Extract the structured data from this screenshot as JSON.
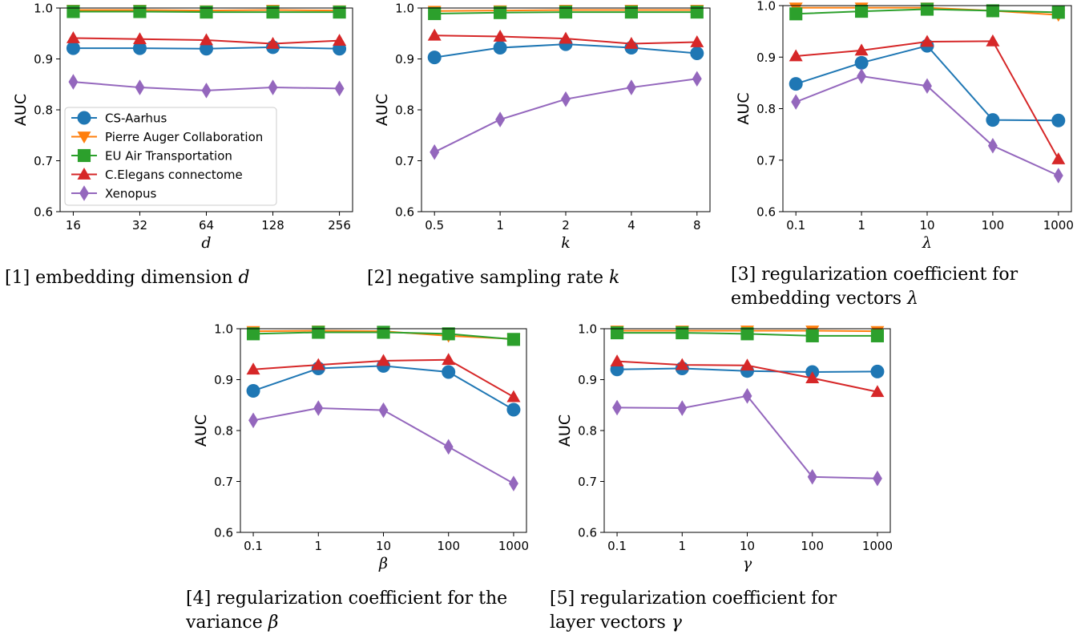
{
  "colors": {
    "CS-Aarhus": "#1f77b4",
    "Pierre Auger Collaboration": "#ff7f0e",
    "EU Air Transportation": "#2ca02c",
    "C.Elegans connectome": "#d62728",
    "Xenopus": "#9467bd"
  },
  "markers": {
    "CS-Aarhus": "circle",
    "Pierre Auger Collaboration": "triangle-down",
    "EU Air Transportation": "square",
    "C.Elegans connectome": "triangle-up",
    "Xenopus": "thin-diamond"
  },
  "captions": [
    {
      "text": "[1] embedding dimension ",
      "var": "d"
    },
    {
      "text": "[2] negative sampling rate ",
      "var": "k"
    },
    {
      "text": "[3] regularization coefficient for embedding vectors ",
      "var": "λ"
    },
    {
      "text": "[4] regularization coefficient for the variance ",
      "var": "β"
    },
    {
      "text": "[5] regularization coefficient for layer vectors ",
      "var": "γ"
    }
  ],
  "chart_data": [
    {
      "type": "line",
      "xlabel": "d",
      "ylabel": "AUC",
      "categories": [
        "16",
        "32",
        "64",
        "128",
        "256"
      ],
      "ylim": [
        0.6,
        1.0
      ],
      "yticks": [
        "0.6",
        "0.7",
        "0.8",
        "0.9",
        "1.0"
      ],
      "legend": "center-left",
      "series": [
        {
          "name": "CS-Aarhus",
          "values": [
            0.921,
            0.921,
            0.92,
            0.923,
            0.92
          ]
        },
        {
          "name": "Pierre Auger Collaboration",
          "values": [
            0.996,
            0.996,
            0.995,
            0.996,
            0.995
          ]
        },
        {
          "name": "EU Air Transportation",
          "values": [
            0.993,
            0.993,
            0.992,
            0.992,
            0.992
          ]
        },
        {
          "name": "C.Elegans connectome",
          "values": [
            0.941,
            0.939,
            0.937,
            0.93,
            0.936
          ]
        },
        {
          "name": "Xenopus",
          "values": [
            0.855,
            0.844,
            0.838,
            0.844,
            0.842
          ]
        }
      ]
    },
    {
      "type": "line",
      "xlabel": "k",
      "ylabel": "AUC",
      "categories": [
        "0.5",
        "1",
        "2",
        "4",
        "8"
      ],
      "ylim": [
        0.6,
        1.0
      ],
      "yticks": [
        "0.6",
        "0.7",
        "0.8",
        "0.9",
        "1.0"
      ],
      "series": [
        {
          "name": "CS-Aarhus",
          "values": [
            0.903,
            0.922,
            0.929,
            0.922,
            0.911
          ]
        },
        {
          "name": "Pierre Auger Collaboration",
          "values": [
            0.994,
            0.995,
            0.996,
            0.996,
            0.996
          ]
        },
        {
          "name": "EU Air Transportation",
          "values": [
            0.989,
            0.991,
            0.992,
            0.992,
            0.992
          ]
        },
        {
          "name": "C.Elegans connectome",
          "values": [
            0.946,
            0.944,
            0.94,
            0.93,
            0.933
          ]
        },
        {
          "name": "Xenopus",
          "values": [
            0.717,
            0.781,
            0.821,
            0.844,
            0.861
          ]
        }
      ]
    },
    {
      "type": "line",
      "xlabel": "λ",
      "ylabel": "AUC",
      "categories": [
        "0.1",
        "1",
        "10",
        "100",
        "1000"
      ],
      "ylim": [
        0.6,
        1.0
      ],
      "yticks": [
        "0.6",
        "0.7",
        "0.8",
        "0.9",
        "1.0"
      ],
      "series": [
        {
          "name": "CS-Aarhus",
          "values": [
            0.848,
            0.889,
            0.922,
            0.778,
            0.777
          ]
        },
        {
          "name": "Pierre Auger Collaboration",
          "values": [
            0.996,
            0.996,
            0.996,
            0.99,
            0.982
          ]
        },
        {
          "name": "EU Air Transportation",
          "values": [
            0.984,
            0.989,
            0.993,
            0.99,
            0.987
          ]
        },
        {
          "name": "C.Elegans connectome",
          "values": [
            0.902,
            0.913,
            0.93,
            0.931,
            0.702
          ]
        },
        {
          "name": "Xenopus",
          "values": [
            0.813,
            0.863,
            0.844,
            0.728,
            0.67
          ]
        }
      ]
    },
    {
      "type": "line",
      "xlabel": "β",
      "ylabel": "AUC",
      "categories": [
        "0.1",
        "1",
        "10",
        "100",
        "1000"
      ],
      "ylim": [
        0.6,
        1.0
      ],
      "yticks": [
        "0.6",
        "0.7",
        "0.8",
        "0.9",
        "1.0"
      ],
      "series": [
        {
          "name": "CS-Aarhus",
          "values": [
            0.878,
            0.922,
            0.927,
            0.915,
            0.841
          ]
        },
        {
          "name": "Pierre Auger Collaboration",
          "values": [
            0.995,
            0.996,
            0.995,
            0.986,
            0.98
          ]
        },
        {
          "name": "EU Air Transportation",
          "values": [
            0.99,
            0.993,
            0.993,
            0.99,
            0.979
          ]
        },
        {
          "name": "C.Elegans connectome",
          "values": [
            0.92,
            0.929,
            0.937,
            0.939,
            0.866
          ]
        },
        {
          "name": "Xenopus",
          "values": [
            0.82,
            0.844,
            0.84,
            0.768,
            0.696
          ]
        }
      ]
    },
    {
      "type": "line",
      "xlabel": "γ",
      "ylabel": "AUC",
      "categories": [
        "0.1",
        "1",
        "10",
        "100",
        "1000"
      ],
      "ylim": [
        0.6,
        1.0
      ],
      "yticks": [
        "0.6",
        "0.7",
        "0.8",
        "0.9",
        "1.0"
      ],
      "series": [
        {
          "name": "CS-Aarhus",
          "values": [
            0.92,
            0.922,
            0.917,
            0.915,
            0.916
          ]
        },
        {
          "name": "Pierre Auger Collaboration",
          "values": [
            0.996,
            0.996,
            0.996,
            0.996,
            0.995
          ]
        },
        {
          "name": "EU Air Transportation",
          "values": [
            0.992,
            0.992,
            0.99,
            0.986,
            0.986
          ]
        },
        {
          "name": "C.Elegans connectome",
          "values": [
            0.936,
            0.929,
            0.928,
            0.903,
            0.876
          ]
        },
        {
          "name": "Xenopus",
          "values": [
            0.845,
            0.844,
            0.868,
            0.709,
            0.706
          ]
        }
      ]
    }
  ]
}
